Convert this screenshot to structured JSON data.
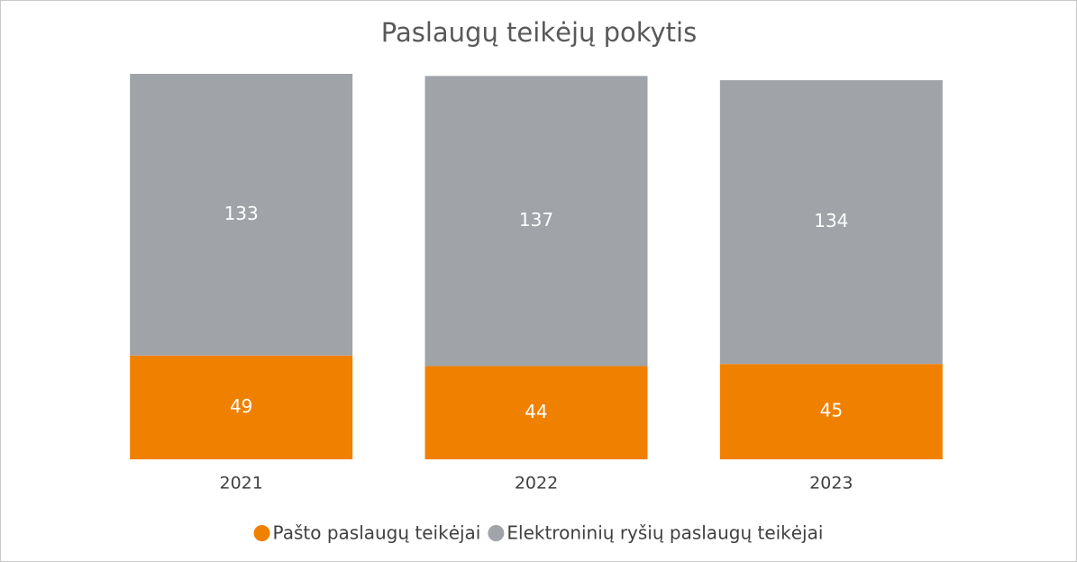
{
  "chart_data": {
    "type": "stacked_bar",
    "title": "Paslaugų teikėjų pokytis",
    "categories": [
      "2021",
      "2022",
      "2023"
    ],
    "series": [
      {
        "name": "Pašto paslaugų teikėjai",
        "color": "#f08000",
        "values": [
          49,
          44,
          45
        ]
      },
      {
        "name": "Elektroninių ryšių paslaugų teikėjai",
        "color": "#a0a4a8",
        "values": [
          133,
          137,
          134
        ]
      }
    ],
    "legend": "bottom"
  }
}
